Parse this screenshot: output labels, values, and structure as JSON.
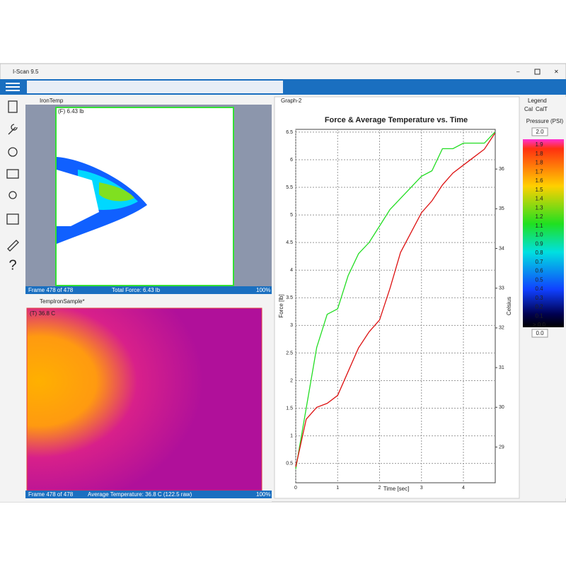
{
  "window": {
    "title": "I-Scan 9.5"
  },
  "panels": {
    "force": {
      "tab": "IronTemp",
      "overlay": "(F) 6.43 lb",
      "status": {
        "frame": "Frame 478 of 478",
        "info": "Total Force: 6.43 lb",
        "zoom": "100%"
      }
    },
    "temp": {
      "tab": "TempIronSample*",
      "overlay": "(T) 36.8 C",
      "status": {
        "frame": "Frame 478 of 478",
        "info": "Average Temperature: 36.8 C (122.5 raw)",
        "zoom": "100%"
      }
    },
    "graph": {
      "tab": "Graph-2"
    },
    "legend": {
      "tab": "Legend",
      "tabs": [
        "Cal",
        "CalT"
      ],
      "unit": "Pressure (PSI)",
      "max": "2.0",
      "min": "0.0",
      "labels": [
        "1.9",
        "1.8",
        "1.8",
        "1.7",
        "1.6",
        "1.5",
        "1.4",
        "1.3",
        "1.2",
        "1.1",
        "1.0",
        "0.9",
        "0.8",
        "0.7",
        "0.6",
        "0.5",
        "0.4",
        "0.3",
        "0.2",
        "0.1",
        "> 0.0"
      ]
    }
  },
  "chart_data": {
    "type": "line",
    "title": "Force & Average Temperature vs. Time",
    "x_label": "Time [sec]",
    "y_label": "Force [lb]",
    "y2_label": "Celsius",
    "x": [
      0,
      0.25,
      0.5,
      0.75,
      1,
      1.25,
      1.5,
      1.75,
      2,
      2.25,
      2.5,
      2.75,
      3,
      3.25,
      3.5,
      3.75,
      4,
      4.25,
      4.5,
      4.75
    ],
    "series": [
      {
        "color": "#22dd22",
        "values": [
          0.4,
          1.5,
          2.6,
          3.2,
          3.3,
          3.9,
          4.3,
          4.5,
          4.8,
          5.1,
          5.3,
          5.5,
          5.7,
          5.8,
          6.2,
          6.2,
          6.3,
          6.3,
          6.3,
          6.5
        ]
      },
      {
        "color": "#dd1111",
        "axis": "y2",
        "values": [
          28.5,
          29.7,
          30.0,
          30.1,
          30.3,
          30.9,
          31.5,
          31.9,
          32.2,
          33.0,
          33.9,
          34.4,
          34.9,
          35.2,
          35.6,
          35.9,
          36.1,
          36.3,
          36.5,
          36.9
        ]
      }
    ],
    "xlim": [
      0,
      4.76
    ],
    "xticks": [
      0,
      1,
      2,
      3,
      4
    ],
    "ylim": [
      0.15,
      6.55
    ],
    "yticks": [
      0.5,
      1,
      1.5,
      2,
      2.5,
      3,
      3.5,
      4,
      4.5,
      5,
      5.5,
      6,
      6.5
    ],
    "y2lim": [
      28.1,
      37.0
    ],
    "y2ticks": [
      29,
      30,
      31,
      32,
      33,
      34,
      35,
      36
    ],
    "grid": true
  }
}
